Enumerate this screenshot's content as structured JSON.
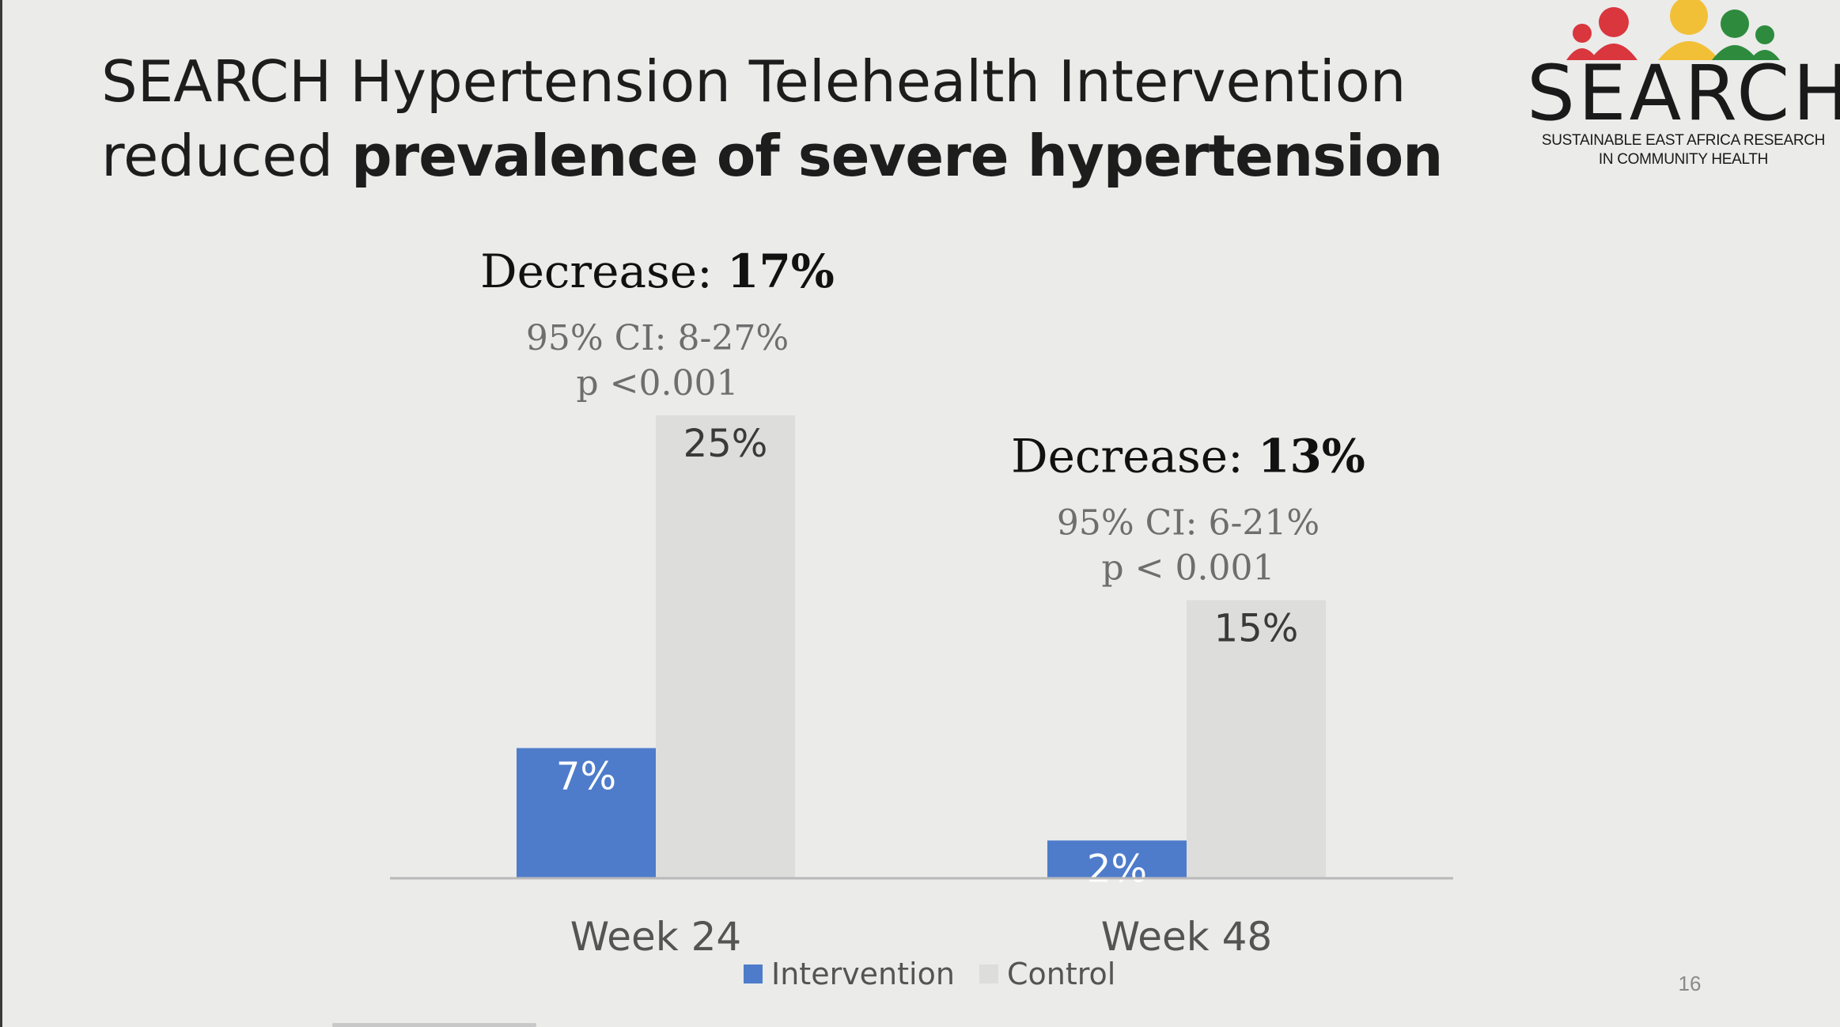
{
  "title": {
    "line1": "SEARCH Hypertension Telehealth Intervention",
    "line2_plain": "reduced",
    "line2_bold": "prevalence of severe hypertension"
  },
  "logo": {
    "word": "SEARCH",
    "sub1": "SUSTAINABLE EAST AFRICA RESEARCH",
    "sub2": "IN COMMUNITY HEALTH",
    "colors": [
      "#d9363e",
      "#f2c037",
      "#2e8b3e"
    ]
  },
  "page_number": "16",
  "colors": {
    "intervention": "#4e7ccb",
    "control": "#dddddc",
    "axis": "#b9b9b9"
  },
  "chart_data": {
    "type": "bar",
    "categories": [
      "Week 24",
      "Week 48"
    ],
    "series": [
      {
        "name": "Intervention",
        "values": [
          7,
          2
        ],
        "labels": [
          "7%",
          "2%"
        ]
      },
      {
        "name": "Control",
        "values": [
          25,
          15
        ],
        "labels": [
          "25%",
          "15%"
        ]
      }
    ],
    "ylim": [
      0,
      25
    ],
    "legend_position": "bottom",
    "annotations": [
      {
        "decrease_label": "Decrease: ",
        "decrease_value": "17%",
        "ci": "95% CI: 8-27%",
        "p": "p <0.001"
      },
      {
        "decrease_label": "Decrease: ",
        "decrease_value": "13%",
        "ci": "95% CI: 6-21%",
        "p": "p < 0.001"
      }
    ]
  }
}
